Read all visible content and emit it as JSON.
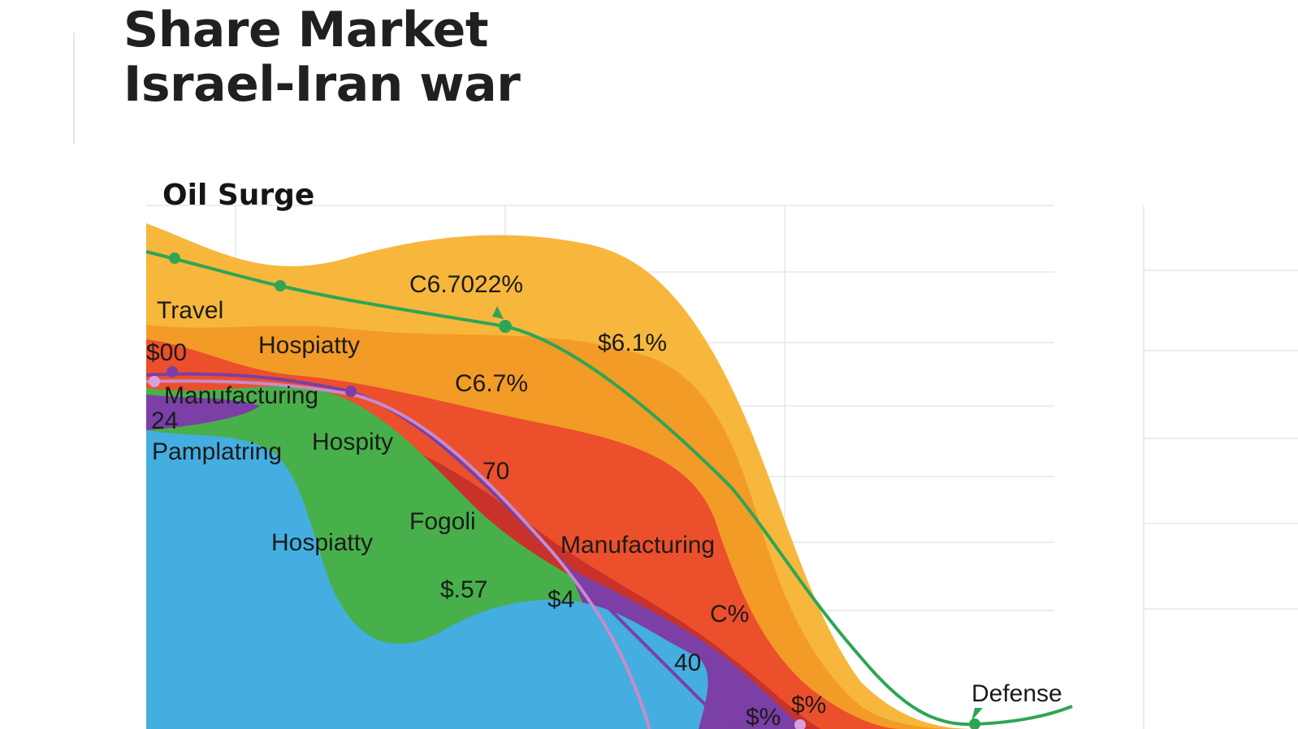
{
  "page": {
    "title_line1": "Share Market",
    "title_line2": "Israel-Iran war"
  },
  "chart_data": {
    "type": "area",
    "title": "Oil Surge",
    "grid": true,
    "legend": "none",
    "layers": [
      {
        "name": "Travel",
        "color": "#f6b73c"
      },
      {
        "name": "Hospitality",
        "color": "#f29b26"
      },
      {
        "name": "Manufacturing",
        "color": "#ec4f2c"
      },
      {
        "name": "Hospity",
        "color": "#48b04a"
      },
      {
        "name": "Pamplatring",
        "color": "#44aee0"
      }
    ],
    "lines": [
      {
        "name": "oil",
        "color": "#2ea556"
      },
      {
        "name": "purple",
        "color": "#7b3fa6"
      },
      {
        "name": "pink",
        "color": "#c98ac9"
      }
    ],
    "labels": {
      "travel": "Travel",
      "hospitality_top": "Hospiatty",
      "c67022": "C6.7022%",
      "s61": "$6.1%",
      "s00": "$00",
      "manufacturing_left": "Manufacturing",
      "n24": "24",
      "c67": "C6.7%",
      "pamplatring": "Pamplatring",
      "hospity": "Hospity",
      "n70": "70",
      "fogoli": "Fogoli",
      "hospiatty_blue": "Hospiatty",
      "manufacturing_mid": "Manufacturing",
      "s57": "$.57",
      "s4": "$4",
      "cpct": "C%",
      "n40": "40",
      "spct1": "$%",
      "spct2": "$%",
      "defense": "Defense"
    },
    "colors": {
      "gold": "#f6b73c",
      "orange": "#f29b26",
      "red": "#ec4f2c",
      "green": "#48b04a",
      "blue": "#44aee0",
      "purple": "#7b3fa6",
      "darkred": "#c8322a"
    }
  }
}
